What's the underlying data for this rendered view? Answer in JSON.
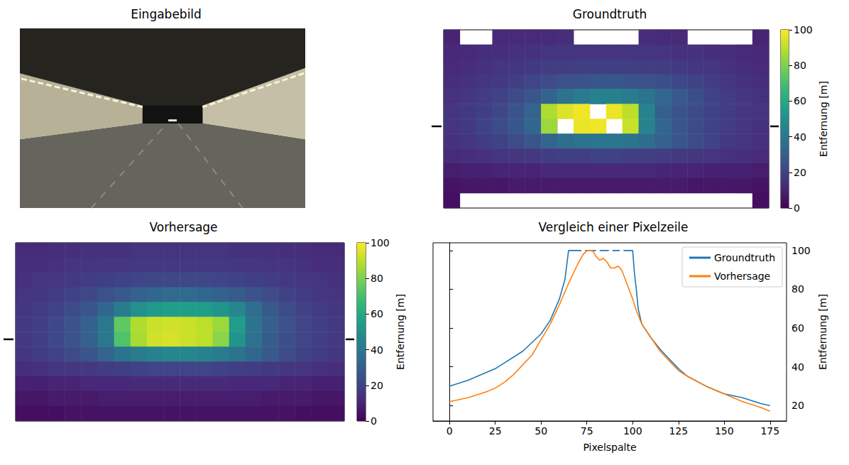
{
  "chart_data": [
    {
      "type": "image",
      "title": "Eingabebild"
    },
    {
      "type": "heatmap",
      "title": "Groundtruth",
      "tick_labels": false,
      "colorbar_label": "Entfernung [m]",
      "colorbar_range": [
        0,
        100
      ],
      "colorbar_ticks": [
        0,
        20,
        40,
        60,
        80,
        100
      ],
      "marked_row": 6,
      "cells": [
        [
          10,
          null,
          null,
          12,
          12,
          12,
          12,
          13,
          null,
          null,
          null,
          null,
          13,
          12,
          12,
          null,
          null,
          null,
          null,
          10
        ],
        [
          11,
          12,
          13,
          13,
          14,
          14,
          15,
          15,
          15,
          15,
          15,
          15,
          15,
          15,
          14,
          14,
          13,
          13,
          12,
          11
        ],
        [
          12,
          13,
          14,
          15,
          16,
          17,
          18,
          18,
          19,
          19,
          19,
          19,
          18,
          18,
          17,
          16,
          15,
          14,
          13,
          12
        ],
        [
          13,
          14,
          16,
          17,
          19,
          21,
          23,
          25,
          26,
          27,
          27,
          26,
          25,
          24,
          22,
          20,
          18,
          16,
          14,
          13
        ],
        [
          14,
          16,
          18,
          20,
          23,
          27,
          32,
          38,
          42,
          44,
          44,
          42,
          38,
          33,
          28,
          24,
          20,
          18,
          16,
          14
        ],
        [
          15,
          17,
          19,
          22,
          26,
          32,
          88,
          95,
          98,
          null,
          97,
          90,
          45,
          30,
          26,
          23,
          20,
          18,
          16,
          15
        ],
        [
          15,
          17,
          20,
          23,
          27,
          33,
          85,
          null,
          97,
          98,
          null,
          92,
          45,
          33,
          27,
          23,
          20,
          18,
          16,
          14
        ],
        [
          14,
          16,
          18,
          20,
          23,
          27,
          32,
          36,
          38,
          39,
          39,
          38,
          35,
          31,
          27,
          23,
          20,
          17,
          15,
          14
        ],
        [
          12,
          13,
          14,
          15,
          16,
          17,
          18,
          19,
          19,
          20,
          20,
          19,
          19,
          18,
          17,
          16,
          15,
          14,
          13,
          12
        ],
        [
          8,
          9,
          9,
          10,
          10,
          10,
          11,
          11,
          11,
          11,
          11,
          11,
          11,
          10,
          10,
          10,
          9,
          9,
          9,
          8
        ],
        [
          5,
          6,
          6,
          6,
          7,
          7,
          7,
          7,
          7,
          7,
          7,
          7,
          7,
          7,
          7,
          6,
          6,
          6,
          6,
          5
        ],
        [
          4,
          null,
          null,
          null,
          null,
          null,
          null,
          null,
          null,
          null,
          null,
          null,
          null,
          null,
          null,
          null,
          null,
          null,
          null,
          4
        ]
      ]
    },
    {
      "type": "heatmap",
      "title": "Vorhersage",
      "tick_labels": false,
      "colorbar_label": "Entfernung [m]",
      "colorbar_range": [
        0,
        100
      ],
      "colorbar_ticks": [
        0,
        20,
        40,
        60,
        80,
        100
      ],
      "marked_row": 6,
      "cells": [
        [
          12,
          12,
          13,
          13,
          14,
          14,
          14,
          15,
          15,
          15,
          15,
          15,
          15,
          14,
          14,
          14,
          13,
          13,
          12,
          12
        ],
        [
          13,
          13,
          14,
          15,
          15,
          16,
          16,
          17,
          17,
          17,
          17,
          17,
          17,
          16,
          16,
          15,
          15,
          14,
          13,
          13
        ],
        [
          14,
          15,
          16,
          17,
          18,
          19,
          20,
          21,
          22,
          22,
          22,
          22,
          21,
          20,
          19,
          18,
          17,
          16,
          15,
          14
        ],
        [
          15,
          16,
          18,
          20,
          22,
          25,
          28,
          31,
          33,
          34,
          34,
          33,
          31,
          29,
          26,
          23,
          20,
          18,
          16,
          15
        ],
        [
          16,
          18,
          20,
          23,
          27,
          33,
          42,
          50,
          54,
          56,
          56,
          55,
          52,
          46,
          36,
          28,
          23,
          20,
          18,
          16
        ],
        [
          17,
          19,
          22,
          26,
          31,
          40,
          75,
          88,
          92,
          93,
          92,
          90,
          85,
          55,
          38,
          30,
          25,
          21,
          19,
          17
        ],
        [
          17,
          19,
          22,
          26,
          31,
          40,
          72,
          87,
          93,
          94,
          92,
          90,
          82,
          52,
          37,
          29,
          24,
          21,
          19,
          17
        ],
        [
          16,
          18,
          20,
          23,
          27,
          32,
          38,
          42,
          45,
          46,
          46,
          45,
          42,
          38,
          33,
          28,
          23,
          20,
          18,
          16
        ],
        [
          13,
          14,
          15,
          16,
          17,
          18,
          19,
          20,
          21,
          21,
          21,
          21,
          20,
          19,
          18,
          17,
          16,
          15,
          14,
          13
        ],
        [
          9,
          9,
          10,
          10,
          11,
          11,
          11,
          12,
          12,
          12,
          12,
          12,
          12,
          11,
          11,
          11,
          10,
          10,
          9,
          9
        ],
        [
          6,
          6,
          7,
          7,
          7,
          8,
          8,
          8,
          8,
          8,
          8,
          8,
          8,
          8,
          8,
          7,
          7,
          7,
          6,
          6
        ],
        [
          4,
          4,
          4,
          5,
          5,
          5,
          5,
          5,
          5,
          5,
          5,
          5,
          5,
          5,
          5,
          5,
          5,
          4,
          4,
          4
        ]
      ]
    },
    {
      "type": "line",
      "title": "Vergleich einer Pixelzeile",
      "x_label": "Pixelspalte",
      "y_label": "Entfernung [m]",
      "xlim": [
        -9,
        184
      ],
      "xticks": [
        0,
        25,
        50,
        75,
        100,
        125,
        150,
        175
      ],
      "ylim": [
        12,
        104
      ],
      "yticks": [
        20,
        40,
        60,
        80,
        100
      ],
      "grid": false,
      "legend": "upper right",
      "series": [
        {
          "name": "Groundtruth",
          "color": "#1f77b4",
          "x": [
            0,
            10,
            20,
            25,
            30,
            40,
            50,
            55,
            60,
            63,
            65,
            66,
            70,
            72,
            73,
            74,
            78,
            80,
            81,
            82,
            85,
            87,
            88,
            89,
            92,
            93,
            94,
            95,
            98,
            100,
            101,
            102,
            103,
            104,
            105,
            110,
            115,
            120,
            125,
            130,
            140,
            150,
            160,
            170,
            175
          ],
          "values": [
            30,
            33,
            37,
            39,
            42,
            48,
            57,
            64,
            75,
            85,
            100,
            100,
            100,
            100,
            null,
            100,
            100,
            100,
            null,
            100,
            100,
            100,
            null,
            100,
            100,
            100,
            null,
            100,
            100,
            100,
            88,
            80,
            70,
            66,
            62,
            55,
            49,
            44,
            39,
            35,
            30,
            26,
            24,
            21,
            20
          ]
        },
        {
          "name": "Vorhersage",
          "color": "#ff7f0e",
          "x": [
            0,
            5,
            10,
            20,
            25,
            30,
            35,
            40,
            45,
            50,
            55,
            60,
            65,
            70,
            73,
            75,
            78,
            80,
            82,
            84,
            86,
            88,
            90,
            92,
            94,
            96,
            98,
            100,
            102,
            105,
            110,
            115,
            120,
            125,
            130,
            140,
            150,
            160,
            170,
            175
          ],
          "values": [
            22,
            23,
            24,
            27,
            29,
            32,
            36,
            41,
            46,
            54,
            62,
            72,
            83,
            93,
            98,
            100,
            100,
            97,
            95,
            96,
            94,
            91,
            91,
            92,
            90,
            85,
            80,
            75,
            69,
            62,
            55,
            48,
            43,
            38,
            35,
            30,
            26,
            22,
            19,
            17
          ]
        }
      ]
    }
  ]
}
